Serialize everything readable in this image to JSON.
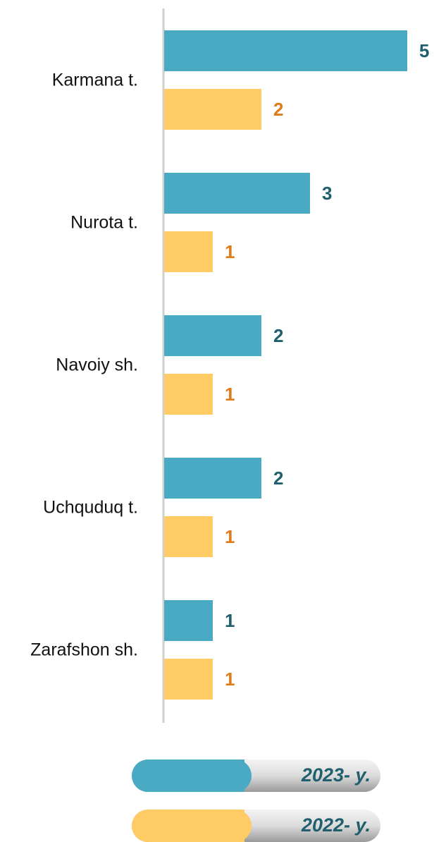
{
  "chart_data": {
    "type": "bar",
    "orientation": "horizontal",
    "categories": [
      "Karmana t.",
      "Nurota t.",
      "Navoiy sh.",
      "Uchquduq t.",
      "Zarafshon sh."
    ],
    "series": [
      {
        "name": "2023- y.",
        "color": "#4aaac4",
        "label_color": "#1f5f6e",
        "values": [
          5,
          3,
          2,
          2,
          1
        ]
      },
      {
        "name": "2022- y.",
        "color": "#fecb65",
        "label_color": "#e07b1a",
        "values": [
          2,
          1,
          1,
          1,
          1
        ]
      }
    ],
    "xlim": [
      0,
      5
    ]
  }
}
